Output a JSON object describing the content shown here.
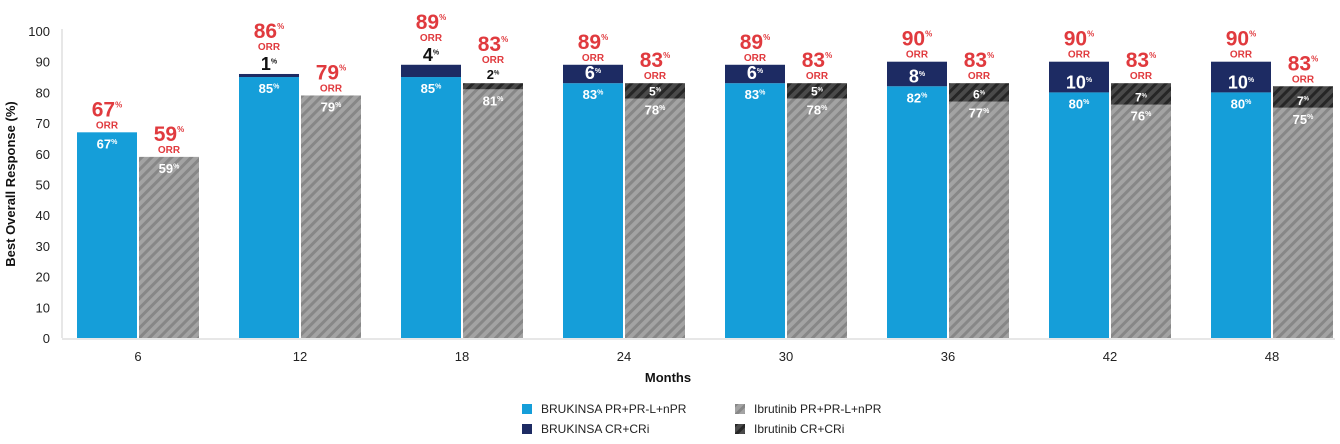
{
  "chart_data": {
    "type": "bar",
    "stacked": true,
    "title": "",
    "xlabel": "Months",
    "ylabel": "Best Overall Response (%)",
    "ylim": [
      0,
      100
    ],
    "yticks": [
      0,
      10,
      20,
      30,
      40,
      50,
      60,
      70,
      80,
      90,
      100
    ],
    "grid": false,
    "legend_position": "bottom",
    "categories": [
      "6",
      "12",
      "18",
      "24",
      "30",
      "36",
      "42",
      "48"
    ],
    "orr_label": "ORR",
    "percent_symbol": "%",
    "series": [
      {
        "name": "BRUKINSA PR+PR-L+nPR",
        "group": "BRUKINSA",
        "part": "base",
        "color": "#159ed9",
        "pattern": "solid",
        "values": [
          67,
          85,
          85,
          83,
          83,
          82,
          80,
          80
        ]
      },
      {
        "name": "BRUKINSA CR+CRi",
        "group": "BRUKINSA",
        "part": "top",
        "color": "#1d2b63",
        "pattern": "solid",
        "values": [
          0,
          1,
          4,
          6,
          6,
          8,
          10,
          10
        ]
      },
      {
        "name": "Ibrutinib PR+PR-L+nPR",
        "group": "Ibrutinib",
        "part": "base",
        "color": "#9a9a9a",
        "pattern": "hatch",
        "values": [
          59,
          79,
          81,
          78,
          78,
          77,
          76,
          75
        ]
      },
      {
        "name": "Ibrutinib CR+CRi",
        "group": "Ibrutinib",
        "part": "top",
        "color": "#3c3c3c",
        "pattern": "hatch",
        "values": [
          0,
          0,
          2,
          5,
          5,
          6,
          7,
          7
        ]
      }
    ],
    "orr": {
      "BRUKINSA": [
        67,
        86,
        89,
        89,
        89,
        90,
        90,
        90
      ],
      "Ibrutinib": [
        59,
        79,
        83,
        83,
        83,
        83,
        83,
        83
      ]
    },
    "colors": {
      "orr_text": "#e03a3e",
      "brukinsa_base": "#159ed9",
      "brukinsa_top": "#1d2b63",
      "ibrutinib_base": "#9a9a9a",
      "ibrutinib_top": "#3c3c3c"
    }
  }
}
